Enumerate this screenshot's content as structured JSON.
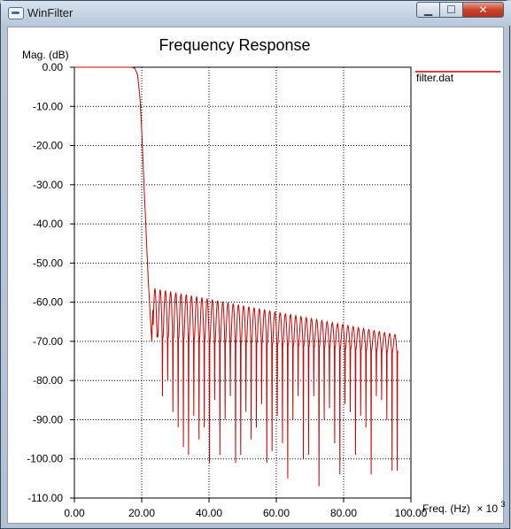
{
  "window": {
    "title": "WinFilter",
    "icon": "app-icon",
    "minimize_glyph": "▁",
    "maximize_glyph": "☐",
    "close_glyph": "✕"
  },
  "chart_data": {
    "type": "line",
    "title": "Frequency Response",
    "ylabel": "Mag. (dB)",
    "xlabel": "Freq. (Hz)",
    "xunit_multiplier": "× 10",
    "xunit_exponent": "3",
    "xlim": [
      0,
      100
    ],
    "ylim": [
      -110,
      0
    ],
    "grid": true,
    "grid_style": "dotted",
    "line_color": "#cc0000",
    "x_ticks": [
      "0.00",
      "20.00",
      "40.00",
      "60.00",
      "80.00",
      "100.00"
    ],
    "y_ticks": [
      "0.00",
      "-10.00",
      "-20.00",
      "-30.00",
      "-40.00",
      "-50.00",
      "-60.00",
      "-70.00",
      "-80.00",
      "-90.00",
      "-100.00",
      "-110.00"
    ],
    "legend": [
      {
        "name": "filter.dat",
        "color": "#cc0000"
      }
    ],
    "legend_position": "top-right",
    "series": [
      {
        "name": "filter.dat",
        "x": [
          0,
          10,
          17,
          18,
          18.8,
          19.5,
          20,
          20.4,
          20.8,
          21.2,
          21.6,
          22,
          22.4,
          22.7,
          23,
          23.3
        ],
        "values": [
          0,
          0,
          0,
          -0.3,
          -2,
          -8,
          -16,
          -24,
          -32,
          -40,
          -48,
          -55,
          -61,
          -66,
          -70,
          -62
        ],
        "passband_edge": 18,
        "stopband_start": 23.3,
        "ripple_period": 1.55,
        "ripple_peak_start": -56.5,
        "ripple_peak_end": -68.5,
        "ripple_trough_start": -69,
        "ripple_trough_end": -73,
        "null_depths": [
          -68,
          -84,
          -80,
          -88,
          -92,
          -97,
          -99,
          -89,
          -95,
          -92,
          -101,
          -85,
          -99,
          -90,
          -84,
          -101,
          -99,
          -88,
          -95,
          -92,
          -86,
          -101,
          -98,
          -89,
          -96,
          -105,
          -90,
          -84,
          -100,
          -99,
          -84,
          -107,
          -90,
          -87,
          -96,
          -104,
          -86,
          -88,
          -99,
          -89,
          -92,
          -104,
          -84,
          -85,
          -90,
          -103,
          -103,
          -93,
          -90
        ],
        "x_end": 96
      }
    ]
  }
}
